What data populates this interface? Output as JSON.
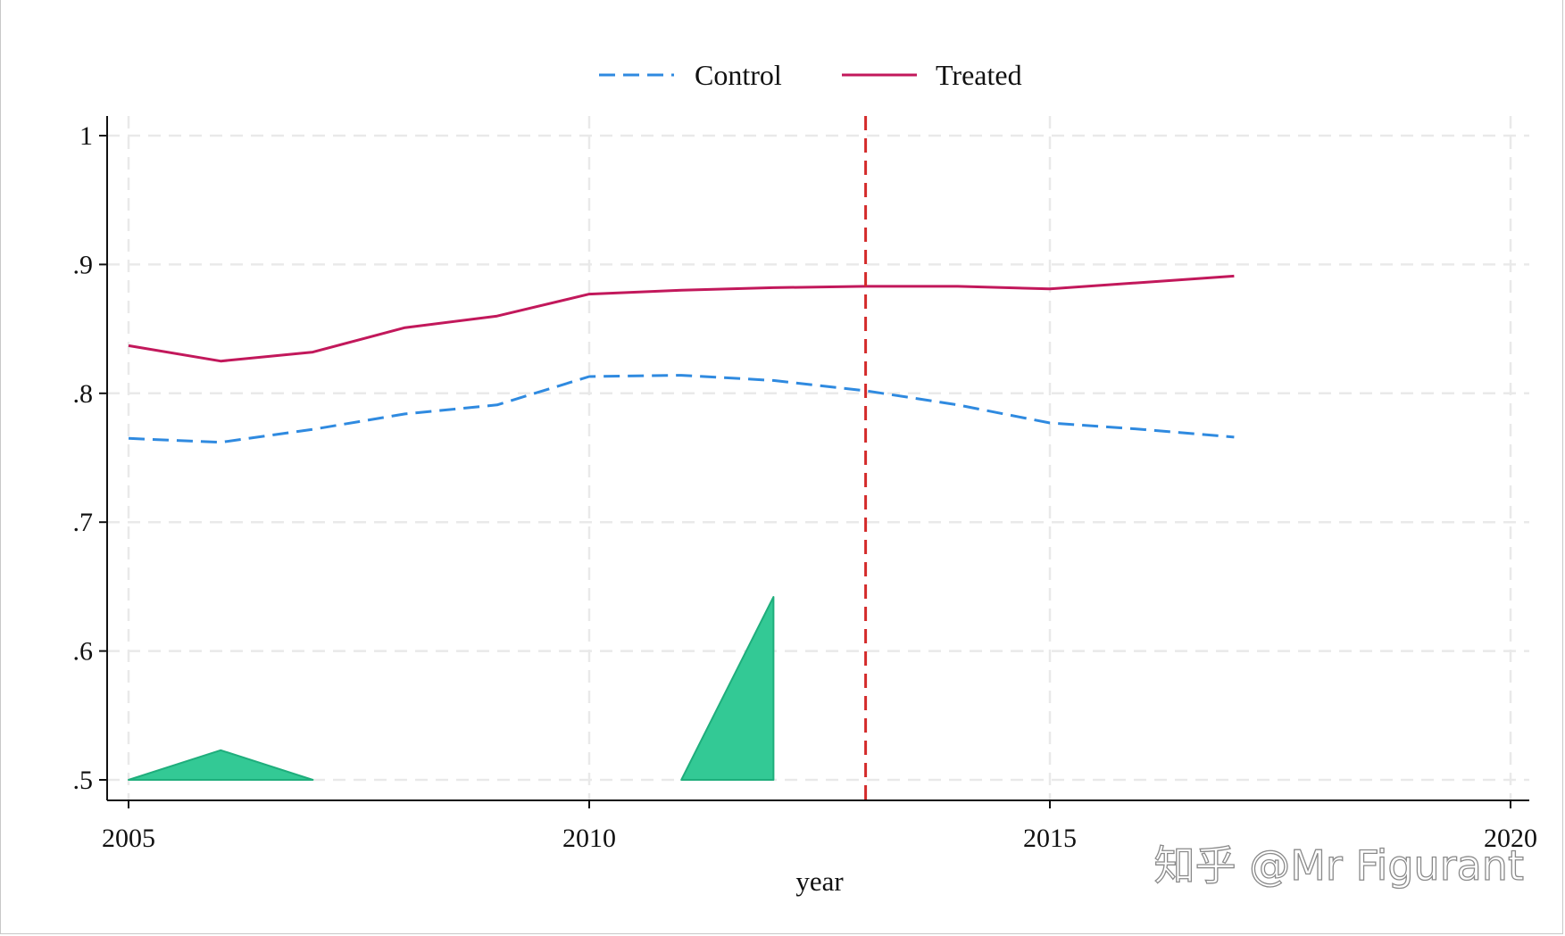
{
  "chart_data": {
    "type": "line",
    "xlabel": "year",
    "ylabel": "",
    "xlim": [
      2005,
      2020
    ],
    "ylim": [
      0.5,
      1.0
    ],
    "x_ticks": [
      2005,
      2010,
      2015,
      2020
    ],
    "x_tick_labels": [
      "2005",
      "2010",
      "2015",
      "2020"
    ],
    "y_ticks": [
      0.5,
      0.6,
      0.7,
      0.8,
      0.9,
      1.0
    ],
    "y_tick_labels": [
      ".5",
      ".6",
      ".7",
      ".8",
      ".9",
      "1"
    ],
    "grid": true,
    "legend_position": "top-center",
    "vertical_line": {
      "x": 2013,
      "color": "#d42a2a",
      "style": "dashed"
    },
    "series": [
      {
        "name": "Control",
        "color": "#2f8ae0",
        "style": "dashed",
        "x": [
          2005,
          2006,
          2007,
          2008,
          2009,
          2010,
          2011,
          2012,
          2013,
          2014,
          2015,
          2016,
          2017
        ],
        "y": [
          0.765,
          0.762,
          0.772,
          0.784,
          0.791,
          0.813,
          0.814,
          0.81,
          0.802,
          0.791,
          0.777,
          0.772,
          0.766
        ]
      },
      {
        "name": "Treated",
        "color": "#c2185b",
        "style": "solid",
        "x": [
          2005,
          2006,
          2007,
          2008,
          2009,
          2010,
          2011,
          2012,
          2013,
          2014,
          2015,
          2016,
          2017
        ],
        "y": [
          0.837,
          0.825,
          0.832,
          0.851,
          0.86,
          0.877,
          0.88,
          0.882,
          0.883,
          0.883,
          0.881,
          0.886,
          0.891
        ]
      }
    ],
    "areas": [
      {
        "color": "#33c995",
        "x": [
          2005,
          2006,
          2007
        ],
        "y": [
          0.5,
          0.523,
          0.5
        ]
      },
      {
        "color": "#33c995",
        "x": [
          2011,
          2012,
          2012
        ],
        "y": [
          0.5,
          0.642,
          0.5
        ]
      }
    ]
  },
  "watermark": {
    "text": "知乎 @Mr Figurant"
  }
}
